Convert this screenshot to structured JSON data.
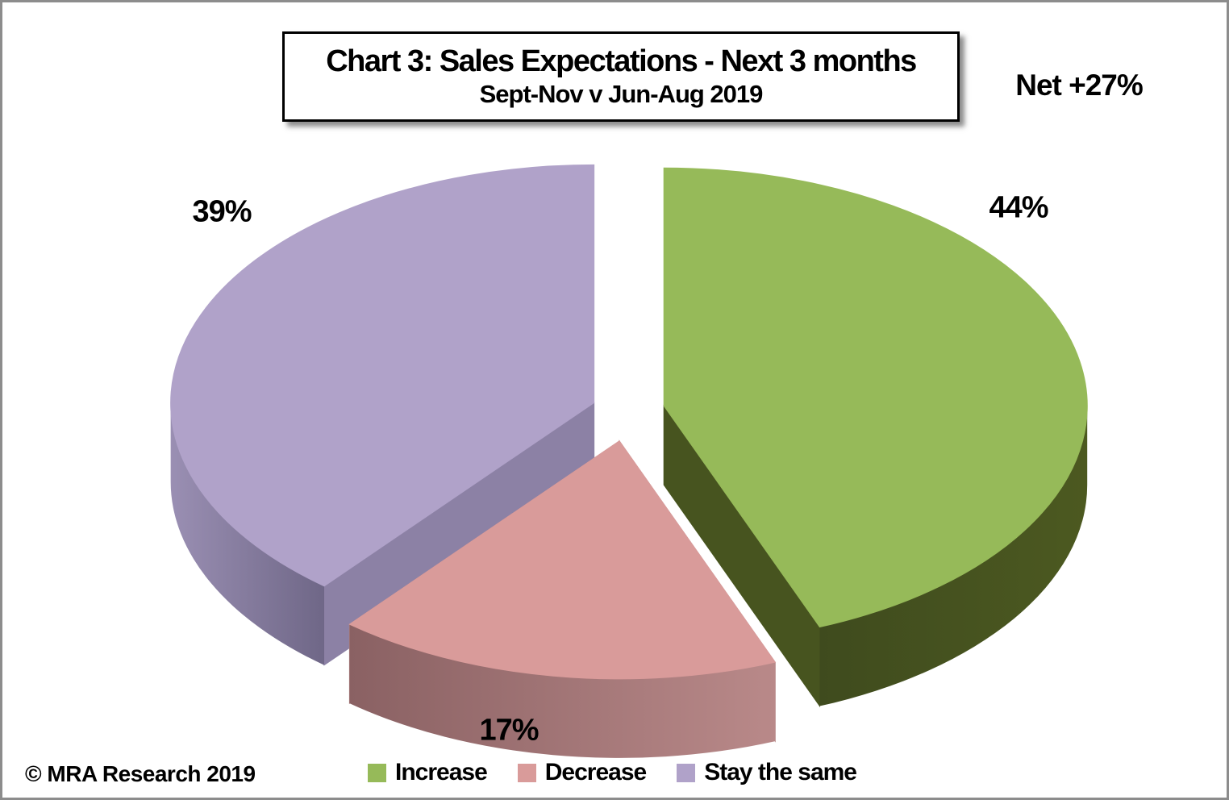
{
  "page": {
    "background_color": "#FFFFFF",
    "border_color": "#8C8C8C"
  },
  "title_box": {
    "title": "Chart 3: Sales Expectations - Next 3 months",
    "subtitle": "Sept-Nov v Jun-Aug 2019"
  },
  "annotation": {
    "net_label": "Net +27%"
  },
  "footer": {
    "copyright": "© MRA Research 2019"
  },
  "chart_data": {
    "type": "pie",
    "style": "3d-exploded",
    "title": "Chart 3: Sales Expectations - Next 3 months",
    "subtitle": "Sept-Nov v Jun-Aug 2019",
    "start_angle_deg": 0,
    "direction": "clockwise",
    "legend_position": "bottom",
    "annotations": [
      "Net +27%"
    ],
    "categories": [
      "Increase",
      "Decrease",
      "Stay the same"
    ],
    "values": [
      44,
      17,
      39
    ],
    "series": [
      {
        "name": "Increase",
        "value": 44,
        "label": "44%",
        "color_top": "#96BA59",
        "color_side_from": "#3F4B1E",
        "color_side_to": "#4C5920",
        "color_cut": "#47541F"
      },
      {
        "name": "Decrease",
        "value": 17,
        "label": "17%",
        "color_top": "#D99B9A",
        "color_side_from": "#8A6163",
        "color_side_to": "#B98989",
        "color_cut": "#B98989"
      },
      {
        "name": "Stay the same",
        "value": 39,
        "label": "39%",
        "color_top": "#B0A2C9",
        "color_side_from": "#9A8FB3",
        "color_side_to": "#6F6787",
        "color_cut": "#8C81A5"
      }
    ]
  }
}
